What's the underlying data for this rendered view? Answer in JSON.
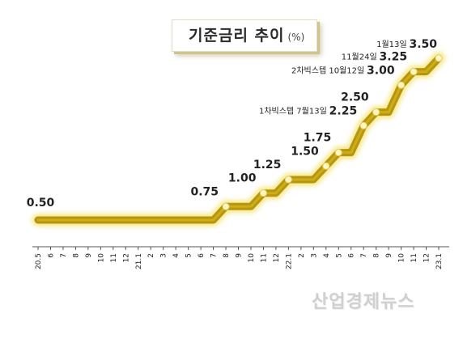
{
  "header": {
    "title": "기준금리 추이",
    "unit": "(%)"
  },
  "watermark": "산업경제뉴스",
  "colors": {
    "line_gold": "#b8960a",
    "line_glow": "#f3e26a",
    "marker_fill": "#fff6c8",
    "axis": "#555555"
  },
  "chart_data": {
    "type": "line",
    "title": "기준금리 추이",
    "unit": "(%)",
    "x": [
      "20.5",
      "6",
      "7",
      "8",
      "9",
      "10",
      "11",
      "12",
      "21.1",
      "2",
      "3",
      "4",
      "5",
      "6",
      "7",
      "8",
      "9",
      "10",
      "11",
      "12",
      "22.1",
      "2",
      "3",
      "4",
      "5",
      "6",
      "7",
      "8",
      "9",
      "10",
      "11",
      "12",
      "23.1"
    ],
    "values": [
      0.5,
      0.5,
      0.5,
      0.5,
      0.5,
      0.5,
      0.5,
      0.5,
      0.5,
      0.5,
      0.5,
      0.5,
      0.5,
      0.5,
      0.5,
      0.75,
      0.75,
      0.75,
      1.0,
      1.0,
      1.25,
      1.25,
      1.25,
      1.5,
      1.75,
      1.75,
      2.25,
      2.5,
      2.5,
      3.0,
      3.25,
      3.25,
      3.5
    ],
    "markers": [
      15,
      18,
      20,
      23,
      24,
      26,
      27,
      29,
      30,
      32
    ],
    "data_labels": [
      {
        "index": 0,
        "value": "0.50"
      },
      {
        "index": 15,
        "value": "0.75"
      },
      {
        "index": 18,
        "value": "1.00"
      },
      {
        "index": 20,
        "value": "1.25"
      },
      {
        "index": 23,
        "value": "1.50"
      },
      {
        "index": 24,
        "value": "1.75"
      },
      {
        "index": 26,
        "value": "2.25",
        "note": "1차빅스텝 7월13일"
      },
      {
        "index": 27,
        "value": "2.50"
      },
      {
        "index": 29,
        "value": "3.00",
        "note": "2차빅스텝 10월12일"
      },
      {
        "index": 30,
        "value": "3.25",
        "note": "11월24일"
      },
      {
        "index": 32,
        "value": "3.50",
        "note": "1월13일"
      }
    ],
    "ylim": [
      0,
      3.5
    ],
    "grid": false,
    "legend": "none"
  }
}
